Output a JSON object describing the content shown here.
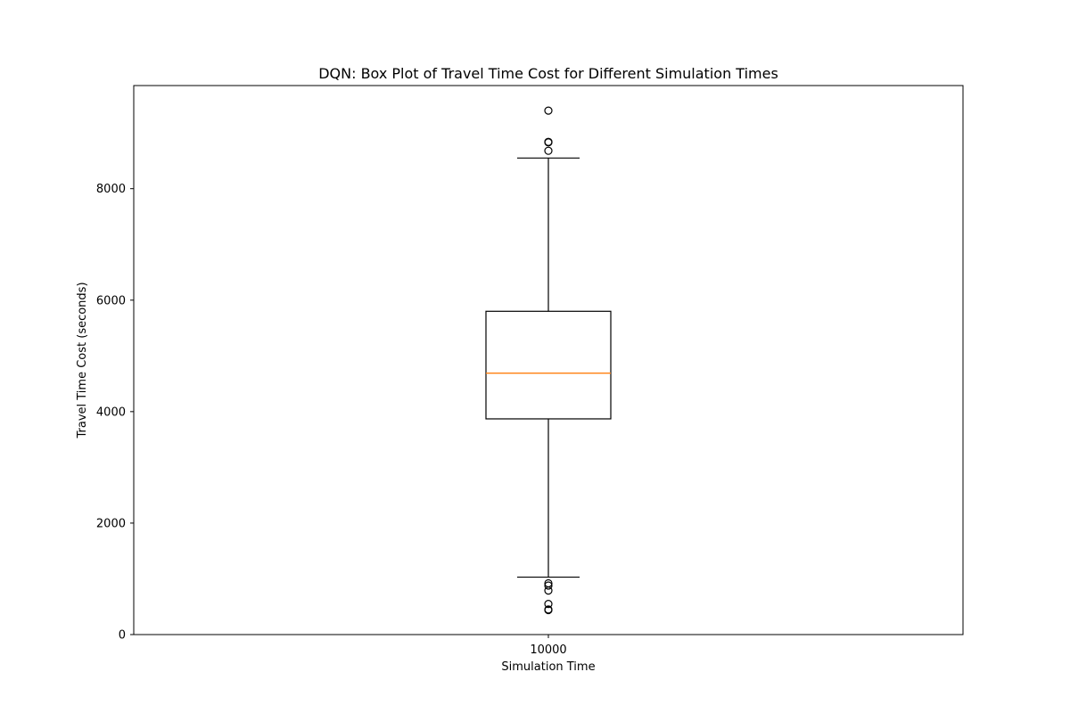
{
  "chart_data": {
    "type": "box",
    "title": "DQN: Box Plot of Travel Time Cost for Different Simulation Times",
    "xlabel": "Simulation Time",
    "ylabel": "Travel Time Cost (seconds)",
    "categories": [
      "10000"
    ],
    "ylim": [
      0,
      9850
    ],
    "yticks": [
      0,
      2000,
      4000,
      6000,
      8000
    ],
    "grid": false,
    "legend": "none",
    "boxes": [
      {
        "category": "10000",
        "whisker_low": 1030,
        "q1": 3870,
        "median": 4690,
        "q3": 5800,
        "whisker_high": 8550,
        "outliers": [
          9400,
          8840,
          8830,
          8680,
          920,
          880,
          790,
          550,
          450,
          440
        ]
      }
    ],
    "colors": {
      "box": "#000000",
      "median": "#ff7f0e",
      "outlier": "#000000"
    }
  }
}
